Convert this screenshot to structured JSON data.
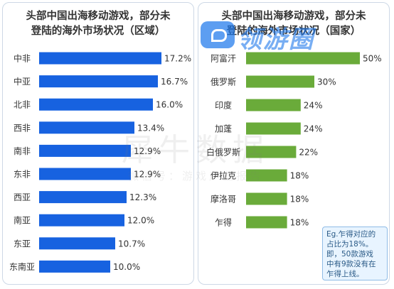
{
  "chart_data": [
    {
      "type": "bar",
      "title": "头部中国出海移动游戏，部分未登陆的海外市场状况（区域）",
      "title_lines": [
        "头部中国出海移动游戏，部分未",
        "登陆的海外市场状况（区域）"
      ],
      "orientation": "horizontal",
      "categories": [
        "中非",
        "中亚",
        "北非",
        "西非",
        "南非",
        "东非",
        "西亚",
        "南亚",
        "东亚",
        "东南亚"
      ],
      "values": [
        17.2,
        16.7,
        16.0,
        13.4,
        12.9,
        12.9,
        12.3,
        12.0,
        10.7,
        10.0
      ],
      "value_labels": [
        "17.2%",
        "16.7%",
        "16.0%",
        "13.4%",
        "12.9%",
        "12.9%",
        "12.3%",
        "12.0%",
        "10.7%",
        "10.0%"
      ],
      "xlim": [
        0,
        20
      ],
      "bar_color": "#1762e0",
      "grid": false
    },
    {
      "type": "bar",
      "title": "头部中国出海移动游戏，部分未登陆的海外市场状况（国家）",
      "title_lines": [
        "头部中国出海移动游戏，部分未",
        "登陆的海外市场状况（国家）"
      ],
      "orientation": "horizontal",
      "categories": [
        "阿富汗",
        "俄罗斯",
        "印度",
        "加蓬",
        "白俄罗斯",
        "伊拉克",
        "摩洛哥",
        "乍得"
      ],
      "values": [
        50,
        30,
        24,
        24,
        22,
        18,
        18,
        18
      ],
      "value_labels": [
        "50%",
        "30%",
        "24%",
        "24%",
        "22%",
        "18%",
        "18%",
        "18%"
      ],
      "xlim": [
        0,
        55
      ],
      "bar_color": "#6aab3a",
      "grid": false
    }
  ],
  "note": {
    "lines": [
      "Eg.乍得对应的",
      "占比为18%。",
      "即，50款游戏",
      "中有9款没有在",
      "乍得上线。"
    ]
  },
  "watermark": {
    "main": "犀牛数据",
    "sub": "微信号：游戏产业报告"
  },
  "logo": {
    "text": "领游圈"
  }
}
